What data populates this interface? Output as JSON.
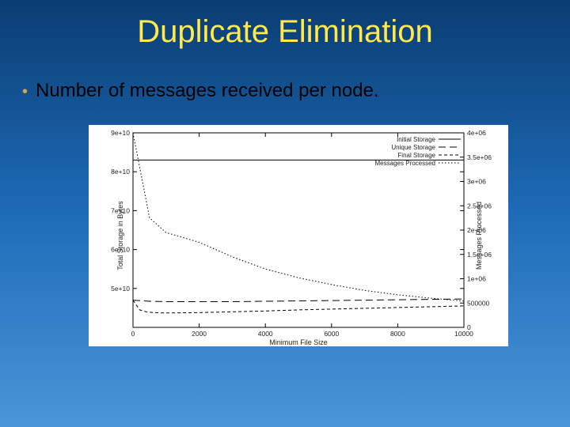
{
  "title": "Duplicate Elimination",
  "bullet": "Number of messages received per node.",
  "chart": {
    "type": "line",
    "background_color": "#ffffff",
    "line_color": "#000000",
    "grid_color": "#000000",
    "axis_color": "#000000",
    "line_width": 1,
    "x_axis": {
      "label": "Minimum File Size",
      "min": 0,
      "max": 10000,
      "tick_step": 2000,
      "ticks": [
        0,
        2000,
        4000,
        6000,
        8000,
        10000
      ]
    },
    "y_left": {
      "label": "Total Storage in Bytes",
      "min": 40000000000.0,
      "max": 90000000000.0,
      "ticks": [
        "5e+10",
        "6e+10",
        "7e+10",
        "8e+10",
        "9e+10"
      ],
      "tick_values": [
        50000000000.0,
        60000000000.0,
        70000000000.0,
        80000000000.0,
        90000000000.0
      ]
    },
    "y_right": {
      "label": "Messages Processed",
      "min": 0,
      "max": 4000000.0,
      "ticks": [
        "0",
        "500000",
        "1e+06",
        "1.5e+06",
        "2e+06",
        "2.5e+06",
        "3e+06",
        "3.5e+06",
        "4e+06"
      ],
      "tick_values": [
        0,
        500000,
        1000000,
        1500000,
        2000000,
        2500000,
        3000000,
        3500000,
        4000000
      ]
    },
    "legend": {
      "position": "top-right",
      "items": [
        {
          "label": "Initial Storage",
          "style": "solid"
        },
        {
          "label": "Unique Storage",
          "style": "long-dash"
        },
        {
          "label": "Final Storage",
          "style": "short-dash"
        },
        {
          "label": "Messages Processed",
          "style": "dotted"
        }
      ]
    },
    "series": {
      "initial_storage": {
        "style": "solid",
        "axis": "left",
        "points": [
          [
            0,
            83000000000.0
          ],
          [
            1000,
            83000000000.0
          ],
          [
            2000,
            83000000000.0
          ],
          [
            3000,
            83000000000.0
          ],
          [
            4000,
            83000000000.0
          ],
          [
            5000,
            83000000000.0
          ],
          [
            6000,
            83000000000.0
          ],
          [
            7000,
            83000000000.0
          ],
          [
            8000,
            83000000000.0
          ],
          [
            9000,
            83000000000.0
          ],
          [
            10000,
            83000000000.0
          ]
        ]
      },
      "unique_storage": {
        "style": "long-dash",
        "axis": "left",
        "points": [
          [
            0,
            47000000000.0
          ],
          [
            500,
            46700000000.0
          ],
          [
            1000,
            46600000000.0
          ],
          [
            2000,
            46600000000.0
          ],
          [
            3000,
            46600000000.0
          ],
          [
            4000,
            46700000000.0
          ],
          [
            5000,
            46800000000.0
          ],
          [
            6000,
            46900000000.0
          ],
          [
            7000,
            47000000000.0
          ],
          [
            8000,
            47100000000.0
          ],
          [
            9000,
            47200000000.0
          ],
          [
            10000,
            47300000000.0
          ]
        ]
      },
      "final_storage": {
        "style": "short-dash",
        "axis": "left",
        "points": [
          [
            0,
            47000000000.0
          ],
          [
            200,
            44500000000.0
          ],
          [
            400,
            44000000000.0
          ],
          [
            600,
            43800000000.0
          ],
          [
            1000,
            43700000000.0
          ],
          [
            2000,
            43800000000.0
          ],
          [
            3000,
            44000000000.0
          ],
          [
            4000,
            44200000000.0
          ],
          [
            5000,
            44500000000.0
          ],
          [
            6000,
            44700000000.0
          ],
          [
            7000,
            44900000000.0
          ],
          [
            8000,
            45100000000.0
          ],
          [
            9000,
            45300000000.0
          ],
          [
            10000,
            45500000000.0
          ]
        ]
      },
      "messages_processed": {
        "style": "dotted",
        "axis": "right",
        "points": [
          [
            0,
            4000000.0
          ],
          [
            500,
            2250000.0
          ],
          [
            1000,
            1950000.0
          ],
          [
            2000,
            1750000.0
          ],
          [
            3000,
            1450000.0
          ],
          [
            4000,
            1200000.0
          ],
          [
            5000,
            1020000.0
          ],
          [
            6000,
            880000.0
          ],
          [
            7000,
            760000.0
          ],
          [
            8000,
            670000.0
          ],
          [
            9000,
            600000.0
          ],
          [
            10000,
            540000.0
          ]
        ]
      }
    }
  }
}
